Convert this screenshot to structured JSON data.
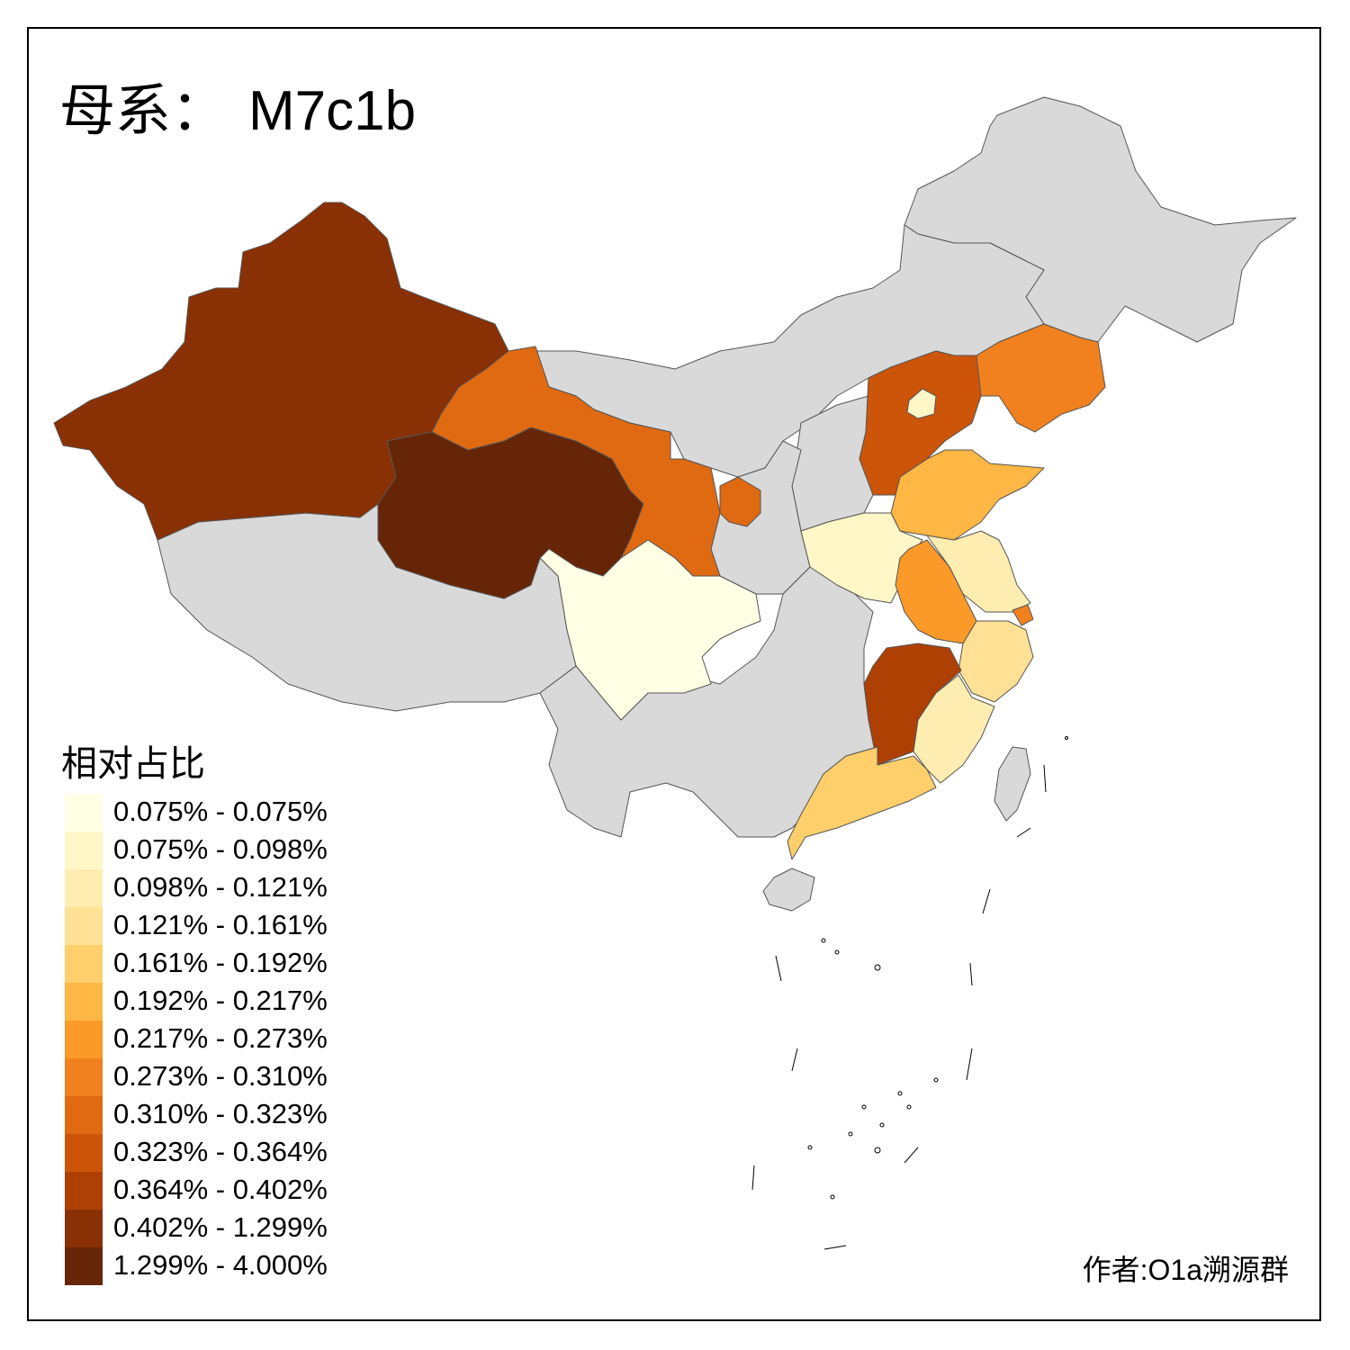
{
  "title": {
    "label": "母系：",
    "haplogroup": "M7c1b"
  },
  "legend": {
    "title": "相对占比",
    "classes": [
      {
        "label": "0.075% - 0.075%",
        "color": "#FFFFE5"
      },
      {
        "label": "0.075% - 0.098%",
        "color": "#FFF7C8"
      },
      {
        "label": "0.098% - 0.121%",
        "color": "#FEEDB0"
      },
      {
        "label": "0.121% - 0.161%",
        "color": "#FEE194"
      },
      {
        "label": "0.161% - 0.192%",
        "color": "#FECF6A"
      },
      {
        "label": "0.192% - 0.217%",
        "color": "#FEB644"
      },
      {
        "label": "0.217% - 0.273%",
        "color": "#FB9929"
      },
      {
        "label": "0.273% - 0.310%",
        "color": "#F0811E"
      },
      {
        "label": "0.310% - 0.323%",
        "color": "#E06A12"
      },
      {
        "label": "0.323% - 0.364%",
        "color": "#CC550A"
      },
      {
        "label": "0.364% - 0.402%",
        "color": "#AE4004"
      },
      {
        "label": "0.402% - 1.299%",
        "color": "#8A3005"
      },
      {
        "label": "1.299% - 4.000%",
        "color": "#662506"
      }
    ]
  },
  "no_data_color": "#D9D9D9",
  "regions": [
    {
      "name": "新疆",
      "class": 11
    },
    {
      "name": "青海",
      "class": 12
    },
    {
      "name": "甘肃",
      "class": 8
    },
    {
      "name": "宁夏",
      "class": 8
    },
    {
      "name": "四川",
      "class": 0
    },
    {
      "name": "河北",
      "class": 9
    },
    {
      "name": "北京",
      "class": 1
    },
    {
      "name": "辽宁",
      "class": 7
    },
    {
      "name": "山东",
      "class": 5
    },
    {
      "name": "河南",
      "class": 1
    },
    {
      "name": "江苏",
      "class": 2
    },
    {
      "name": "安徽",
      "class": 6
    },
    {
      "name": "上海",
      "class": 7
    },
    {
      "name": "浙江",
      "class": 3
    },
    {
      "name": "江西",
      "class": 10
    },
    {
      "name": "福建",
      "class": 2
    },
    {
      "name": "广东",
      "class": 4
    }
  ],
  "author": "作者:O1a溯源群"
}
